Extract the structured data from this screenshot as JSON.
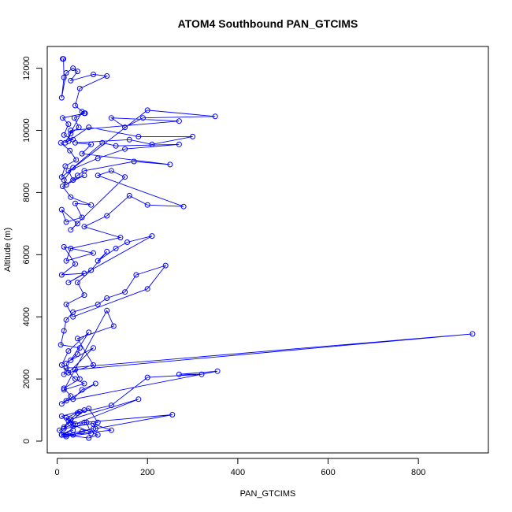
{
  "chart_data": {
    "type": "line",
    "title": "ATOM4 Southbound PAN_GTCIMS",
    "xlabel": "PAN_GTCIMS",
    "ylabel": "Altitude (m)",
    "xlim": [
      -22,
      955
    ],
    "ylim": [
      -380,
      12700
    ],
    "xticks": [
      0,
      200,
      400,
      600,
      800
    ],
    "yticks": [
      0,
      2000,
      4000,
      6000,
      8000,
      10000,
      12000
    ],
    "grid": false,
    "legend": "none",
    "colors": {
      "series": "#0000ff"
    },
    "series": [
      {
        "x": [
          12,
          14,
          15,
          10,
          20,
          35,
          45,
          30,
          80,
          110,
          50,
          40,
          60,
          38,
          48,
          30,
          18,
          55,
          62,
          12,
          25,
          15,
          35,
          8,
          28,
          42,
          18,
          10,
          200,
          350,
          190,
          150,
          120,
          270,
          30,
          25,
          70,
          180,
          300,
          210,
          160,
          40,
          75,
          55,
          250,
          170,
          60,
          45,
          20,
          15,
          35,
          100,
          130,
          270,
          150,
          90,
          25,
          35,
          60,
          12,
          30,
          75,
          40,
          55,
          20,
          10,
          45,
          30,
          150,
          120,
          90,
          280,
          200,
          160,
          110,
          60,
          140,
          30,
          20,
          80,
          15,
          40,
          10,
          60,
          25,
          210,
          155,
          130,
          90,
          110,
          75,
          45,
          60,
          20,
          35,
          200,
          240,
          175,
          150,
          110,
          90,
          35,
          20,
          15,
          8,
          50,
          45,
          20,
          25,
          80,
          30,
          70,
          25,
          10,
          40,
          60,
          15,
          110,
          125,
          45,
          80,
          15,
          20,
          920,
          40,
          50,
          15,
          30,
          10,
          85,
          55,
          35,
          20,
          355,
          270,
          320,
          200,
          120,
          45,
          25,
          15,
          60,
          10,
          40,
          180,
          30,
          15,
          90,
          70,
          50,
          20,
          35,
          5,
          20,
          120,
          80,
          85,
          255,
          60,
          10,
          35,
          55,
          80,
          15,
          70,
          90,
          30,
          65,
          75,
          20,
          10,
          35
        ],
        "y": [
          12300,
          12300,
          11700,
          11050,
          11850,
          12000,
          11900,
          11600,
          11800,
          11750,
          11350,
          10800,
          10550,
          10400,
          10100,
          9900,
          9600,
          10600,
          10550,
          10400,
          10200,
          9850,
          9700,
          9600,
          9350,
          9050,
          8850,
          8500,
          10650,
          10450,
          10400,
          10100,
          10400,
          10300,
          10000,
          9650,
          10100,
          9800,
          9800,
          9550,
          9700,
          9600,
          9550,
          9250,
          8900,
          9000,
          8700,
          8550,
          8250,
          8400,
          8800,
          9600,
          9500,
          9550,
          9400,
          9100,
          8700,
          8400,
          8550,
          8200,
          7850,
          7600,
          7650,
          7200,
          7050,
          7450,
          7000,
          6800,
          8500,
          8700,
          8550,
          7550,
          7600,
          7900,
          7250,
          6900,
          6550,
          6200,
          5800,
          6050,
          6250,
          5700,
          5350,
          5400,
          5100,
          6600,
          6400,
          6200,
          5800,
          6100,
          5500,
          5100,
          4700,
          4400,
          4000,
          4900,
          5650,
          5350,
          4800,
          4600,
          4400,
          4150,
          3900,
          3550,
          3100,
          3000,
          2800,
          2500,
          2200,
          3000,
          2600,
          3500,
          2900,
          2450,
          2000,
          1850,
          1650,
          4200,
          3700,
          3300,
          2450,
          2150,
          2350,
          3450,
          2300,
          2000,
          1700,
          1450,
          1200,
          1850,
          1650,
          1350,
          1300,
          2250,
          2150,
          2150,
          2050,
          1150,
          900,
          650,
          450,
          1000,
          800,
          550,
          1350,
          700,
          400,
          600,
          1050,
          950,
          750,
          550,
          350,
          200,
          350,
          550,
          400,
          850,
          600,
          200,
          200,
          300,
          400,
          200,
          100,
          200,
          550,
          600,
          250,
          150,
          200,
          350
        ]
      }
    ]
  }
}
